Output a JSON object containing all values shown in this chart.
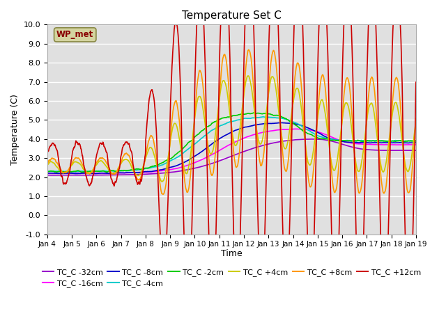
{
  "title": "Temperature Set C",
  "xlabel": "Time",
  "ylabel": "Temperature (C)",
  "ylim": [
    -1.0,
    10.0
  ],
  "yticks": [
    -1.0,
    0.0,
    1.0,
    2.0,
    3.0,
    4.0,
    5.0,
    6.0,
    7.0,
    8.0,
    9.0,
    10.0
  ],
  "background_color": "#e0e0e0",
  "series": [
    {
      "label": "TC_C -32cm",
      "color": "#9900cc"
    },
    {
      "label": "TC_C -16cm",
      "color": "#ff00ff"
    },
    {
      "label": "TC_C -8cm",
      "color": "#0000cc"
    },
    {
      "label": "TC_C -4cm",
      "color": "#00cccc"
    },
    {
      "label": "TC_C -2cm",
      "color": "#00cc00"
    },
    {
      "label": "TC_C +4cm",
      "color": "#cccc00"
    },
    {
      "label": "TC_C +8cm",
      "color": "#ff9900"
    },
    {
      "label": "TC_C +12cm",
      "color": "#cc0000"
    }
  ],
  "wp_met_box_facecolor": "#d4d4a0",
  "wp_met_box_edgecolor": "#888844",
  "wp_met_text_color": "#880000",
  "legend_ncol": 6,
  "xtick_labels": [
    "Jan 4",
    "Jan 5",
    "Jan 6",
    "Jan 7",
    "Jan 8",
    "Jan 9",
    "Jan 10",
    "Jan 11",
    "Jan 12",
    "Jan 13",
    "Jan 14",
    "Jan 15",
    "Jan 16",
    "Jan 17",
    "Jan 18",
    "Jan 19"
  ],
  "n_points": 1500
}
